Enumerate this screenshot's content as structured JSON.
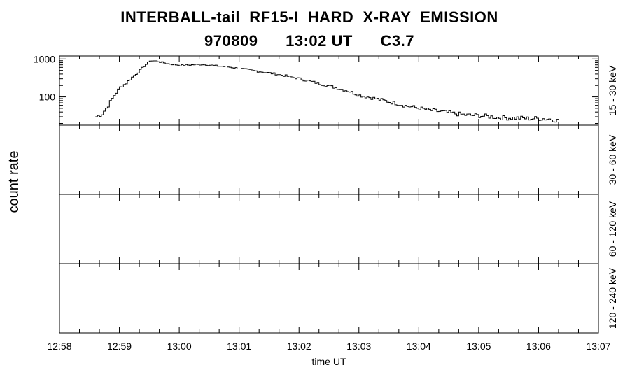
{
  "header": {
    "title": "INTERBALL-tail  RF15-I  HARD  X-RAY  EMISSION",
    "subtitle": "970809      13:02 UT      C3.7"
  },
  "chart_data": {
    "type": "line",
    "line_style": "histogram-step",
    "ylabel": "count rate",
    "xlabel": "time UT",
    "x_ticks": [
      "12:58",
      "12:59",
      "13:00",
      "13:01",
      "13:02",
      "13:03",
      "13:04",
      "13:05",
      "13:06",
      "13:07"
    ],
    "xlim": [
      "12:58",
      "13:07"
    ],
    "panels": [
      {
        "band": "15 - 30 keV",
        "yscale": "log",
        "ylim": [
          18,
          1200
        ],
        "y_ticks": [
          "1000",
          "100"
        ],
        "y_tick_values": [
          1000,
          100
        ],
        "series": {
          "x": [
            "12:58:36",
            "12:58:42",
            "12:58:48",
            "12:58:54",
            "12:59:00",
            "12:59:06",
            "12:59:12",
            "12:59:18",
            "12:59:24",
            "12:59:30",
            "12:59:36",
            "12:59:48",
            "13:00:00",
            "13:00:12",
            "13:00:24",
            "13:00:36",
            "13:00:48",
            "13:01:00",
            "13:01:12",
            "13:01:24",
            "13:01:36",
            "13:01:48",
            "13:02:00",
            "13:02:12",
            "13:02:24",
            "13:02:36",
            "13:02:48",
            "13:03:00",
            "13:03:12",
            "13:03:24",
            "13:03:36",
            "13:03:48",
            "13:04:00",
            "13:04:12",
            "13:04:24",
            "13:04:36",
            "13:04:48",
            "13:05:00",
            "13:05:12",
            "13:05:24",
            "13:05:36",
            "13:05:48",
            "13:06:00",
            "13:06:12",
            "13:06:18"
          ],
          "y": [
            30,
            36,
            60,
            110,
            180,
            230,
            330,
            450,
            650,
            900,
            880,
            750,
            680,
            700,
            720,
            660,
            620,
            560,
            500,
            450,
            400,
            350,
            300,
            250,
            210,
            175,
            145,
            110,
            95,
            80,
            68,
            57,
            50,
            44,
            40,
            36,
            33,
            32,
            30,
            28,
            28,
            27,
            27,
            26,
            24
          ]
        }
      },
      {
        "band": "30 - 60 keV",
        "series": {
          "x": [],
          "y": []
        }
      },
      {
        "band": "60 - 120 keV",
        "series": {
          "x": [],
          "y": []
        }
      },
      {
        "band": "120 - 240 keV",
        "series": {
          "x": [],
          "y": []
        }
      }
    ],
    "grid": false,
    "legend": "none"
  }
}
